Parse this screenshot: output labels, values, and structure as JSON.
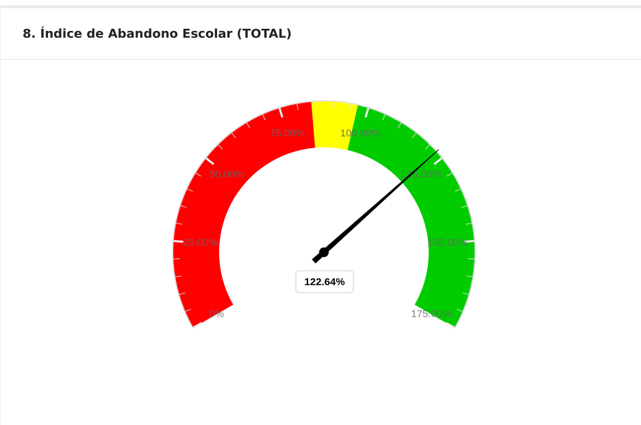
{
  "chart_data": {
    "type": "gauge",
    "title": "8. Índice de Abandono Escolar (TOTAL)",
    "value": 122.64,
    "value_labels": "122.64%",
    "ylim": [
      0,
      175
    ],
    "yticks": [
      {
        "value": 0,
        "label": "0%"
      },
      {
        "value": 25,
        "label": "25.00%"
      },
      {
        "value": 50,
        "label": "50.00%"
      },
      {
        "value": 75,
        "label": "75.00%"
      },
      {
        "value": 100,
        "label": "100.00%"
      },
      {
        "value": 125,
        "label": "125.00%"
      },
      {
        "value": 150,
        "label": "150.00%"
      },
      {
        "value": 175,
        "label": "175.00%"
      }
    ],
    "minor_tick_interval": 5,
    "bands": [
      {
        "from": 0,
        "to": 84,
        "color": "#ff0000"
      },
      {
        "from": 84,
        "to": 97,
        "color": "#ffff00"
      },
      {
        "from": 97,
        "to": 175,
        "color": "#00cc00"
      }
    ]
  }
}
